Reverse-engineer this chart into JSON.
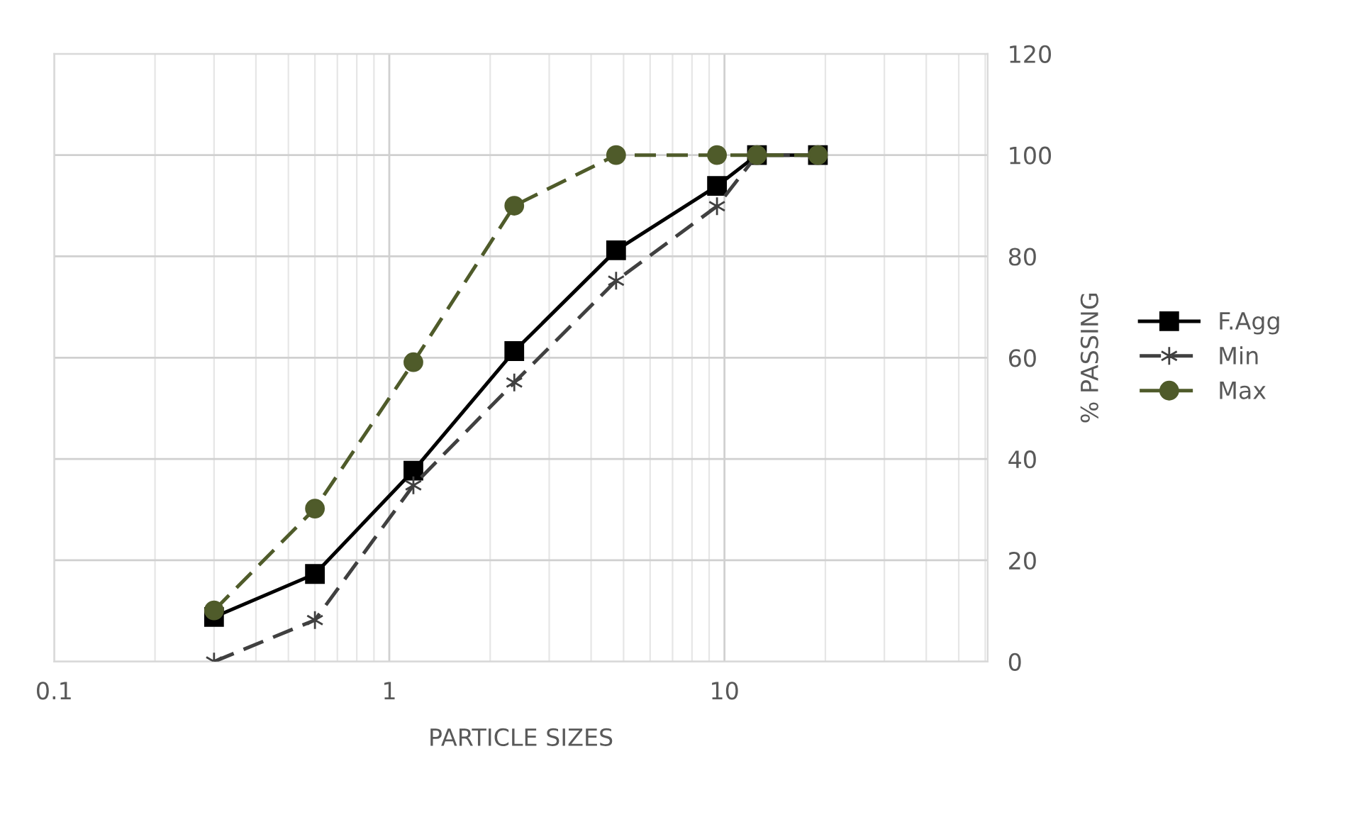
{
  "chart_data": {
    "type": "line",
    "xlabel": "PARTICLE SIZES",
    "ylabel": "% PASSING",
    "log": "x",
    "xlim": [
      0.1,
      61
    ],
    "xticks": [
      0.1,
      1,
      10
    ],
    "ylim": [
      0,
      120
    ],
    "yticks": [
      0,
      20,
      40,
      60,
      80,
      100,
      120
    ],
    "grid": true,
    "legend": "right",
    "series": [
      {
        "name": "F.Agg",
        "color": "#000000",
        "marker": "square",
        "line_style": "solid",
        "x": [
          0.3,
          0.6,
          1.18,
          2.36,
          4.75,
          9.5,
          12.5,
          19
        ],
        "values": [
          8.8,
          17.3,
          37.7,
          61.3,
          81.2,
          93.9,
          100,
          100
        ]
      },
      {
        "name": "Min",
        "color": "#404040",
        "marker": "cross",
        "line_style": "dashed",
        "x": [
          0.3,
          0.6,
          1.18,
          2.36,
          4.75,
          9.5,
          12.5,
          19
        ],
        "values": [
          0,
          8.2,
          34.8,
          55.1,
          75.2,
          89.9,
          100,
          100
        ]
      },
      {
        "name": "Max",
        "color": "#4f5b2a",
        "marker": "circle",
        "line_style": "dashed",
        "x": [
          0.3,
          0.6,
          1.18,
          2.36,
          4.75,
          9.5,
          12.5,
          19
        ],
        "values": [
          10.1,
          30.2,
          59.1,
          90,
          100,
          100,
          100,
          100
        ]
      }
    ]
  }
}
